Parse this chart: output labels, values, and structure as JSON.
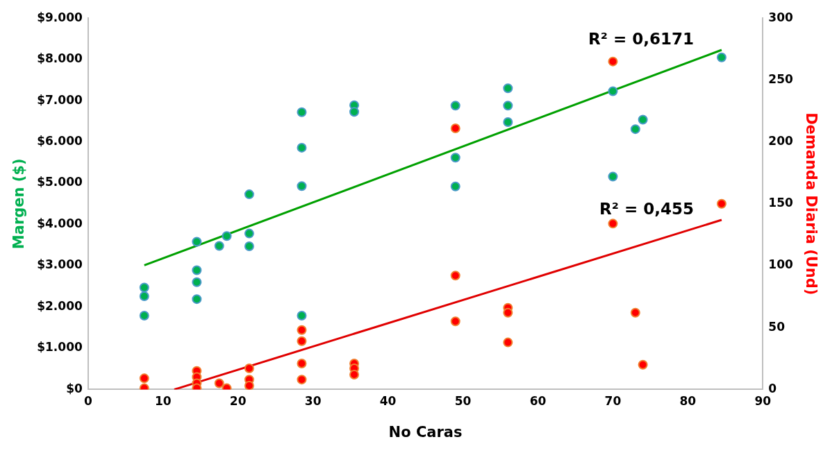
{
  "chart_data": {
    "type": "scatter",
    "xlabel": "No Caras",
    "ylabel": "Margen ($)",
    "y2label": "Demanda Diaria (Und)",
    "xlim": [
      0,
      90
    ],
    "xticks": [
      0,
      10,
      20,
      30,
      40,
      50,
      60,
      70,
      80,
      90
    ],
    "ylim": [
      0,
      9000
    ],
    "yticks": [
      {
        "value": 0,
        "label": "$0"
      },
      {
        "value": 1000,
        "label": "$1.000"
      },
      {
        "value": 2000,
        "label": "$2.000"
      },
      {
        "value": 3000,
        "label": "$3.000"
      },
      {
        "value": 4000,
        "label": "$4.000"
      },
      {
        "value": 5000,
        "label": "$5.000"
      },
      {
        "value": 6000,
        "label": "$6.000"
      },
      {
        "value": 7000,
        "label": "$7.000"
      },
      {
        "value": 8000,
        "label": "$8.000"
      },
      {
        "value": 9000,
        "label": "$9.000"
      }
    ],
    "y2lim": [
      0,
      300
    ],
    "y2ticks": [
      0,
      50,
      100,
      150,
      200,
      250,
      300
    ],
    "grid": false,
    "legend": false,
    "marker": "circle",
    "series": [
      {
        "color": "#00b050",
        "x": [
          7.5,
          7.5,
          7.5,
          14.5,
          14.5,
          14.5,
          14.5,
          17.5,
          18.5,
          21.5,
          21.5,
          21.5,
          28.5,
          28.5,
          28.5,
          28.5,
          35.5,
          35.5,
          49,
          49,
          49,
          56,
          56,
          56,
          70,
          70,
          73,
          74,
          84.5
        ],
        "values": [
          2470,
          2260,
          1790,
          3580,
          2890,
          2600,
          2190,
          3480,
          3720,
          4730,
          3780,
          3470,
          6720,
          5860,
          4930,
          1790,
          6890,
          6730,
          6880,
          5620,
          4920,
          7300,
          6880,
          6480,
          7230,
          5160,
          6310,
          6540,
          8050
        ]
      },
      {
        "color": "#ff0000",
        "axis": "y2",
        "x": [
          7.5,
          7.5,
          14.5,
          14.5,
          14.5,
          14.5,
          17.5,
          18.5,
          21.5,
          21.5,
          21.5,
          28.5,
          28.5,
          28.5,
          28.5,
          35.5,
          35.5,
          35.5,
          49,
          49,
          49,
          56,
          56,
          56,
          70,
          70,
          73,
          74,
          84.5
        ],
        "values": [
          9,
          1,
          15,
          10,
          5,
          1,
          5,
          1,
          17,
          8,
          3,
          48,
          39,
          21,
          8,
          21,
          17,
          12,
          211,
          92,
          55,
          66,
          62,
          38,
          265,
          134,
          62,
          20,
          150
        ]
      },
      {
        "type": "line",
        "marker": "none",
        "color": "#00a000",
        "x": [
          7.5,
          84.5
        ],
        "values": [
          3010,
          8230
        ]
      },
      {
        "type": "line",
        "marker": "none",
        "color": "#e00000",
        "axis": "y2",
        "x": [
          11.5,
          84.5
        ],
        "values": [
          0,
          137
        ]
      }
    ],
    "annotations": [
      "R² = 0,6171",
      "R² = 0,455"
    ]
  }
}
